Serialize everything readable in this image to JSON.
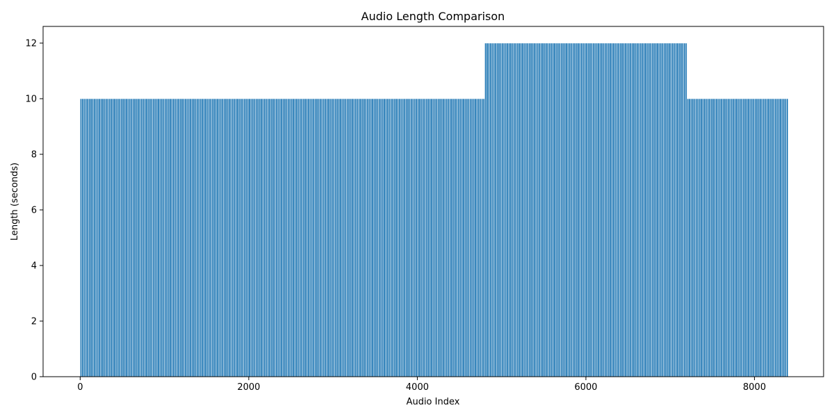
{
  "chart_data": {
    "type": "bar",
    "title": "Audio Length Comparison",
    "xlabel": "Audio Index",
    "ylabel": "Length (seconds)",
    "xlim": [
      -440,
      8820
    ],
    "ylim": [
      0,
      12.6
    ],
    "xticks": [
      0,
      2000,
      4000,
      6000,
      8000
    ],
    "yticks": [
      0,
      2,
      4,
      6,
      8,
      10,
      12
    ],
    "xtick_labels": [
      "0",
      "2000",
      "4000",
      "6000",
      "8000"
    ],
    "ytick_labels": [
      "0",
      "2",
      "4",
      "6",
      "8",
      "10",
      "12"
    ],
    "grid": false,
    "bar_color": "#1f77b4",
    "bar_edge_color": "#ffffff",
    "index_range": [
      0,
      8399
    ],
    "bar_step": 20,
    "segments": [
      {
        "start_index": 0,
        "end_index": 4799,
        "value": 10
      },
      {
        "start_index": 4800,
        "end_index": 7199,
        "value": 12
      },
      {
        "start_index": 7200,
        "end_index": 8399,
        "value": 10
      }
    ]
  }
}
